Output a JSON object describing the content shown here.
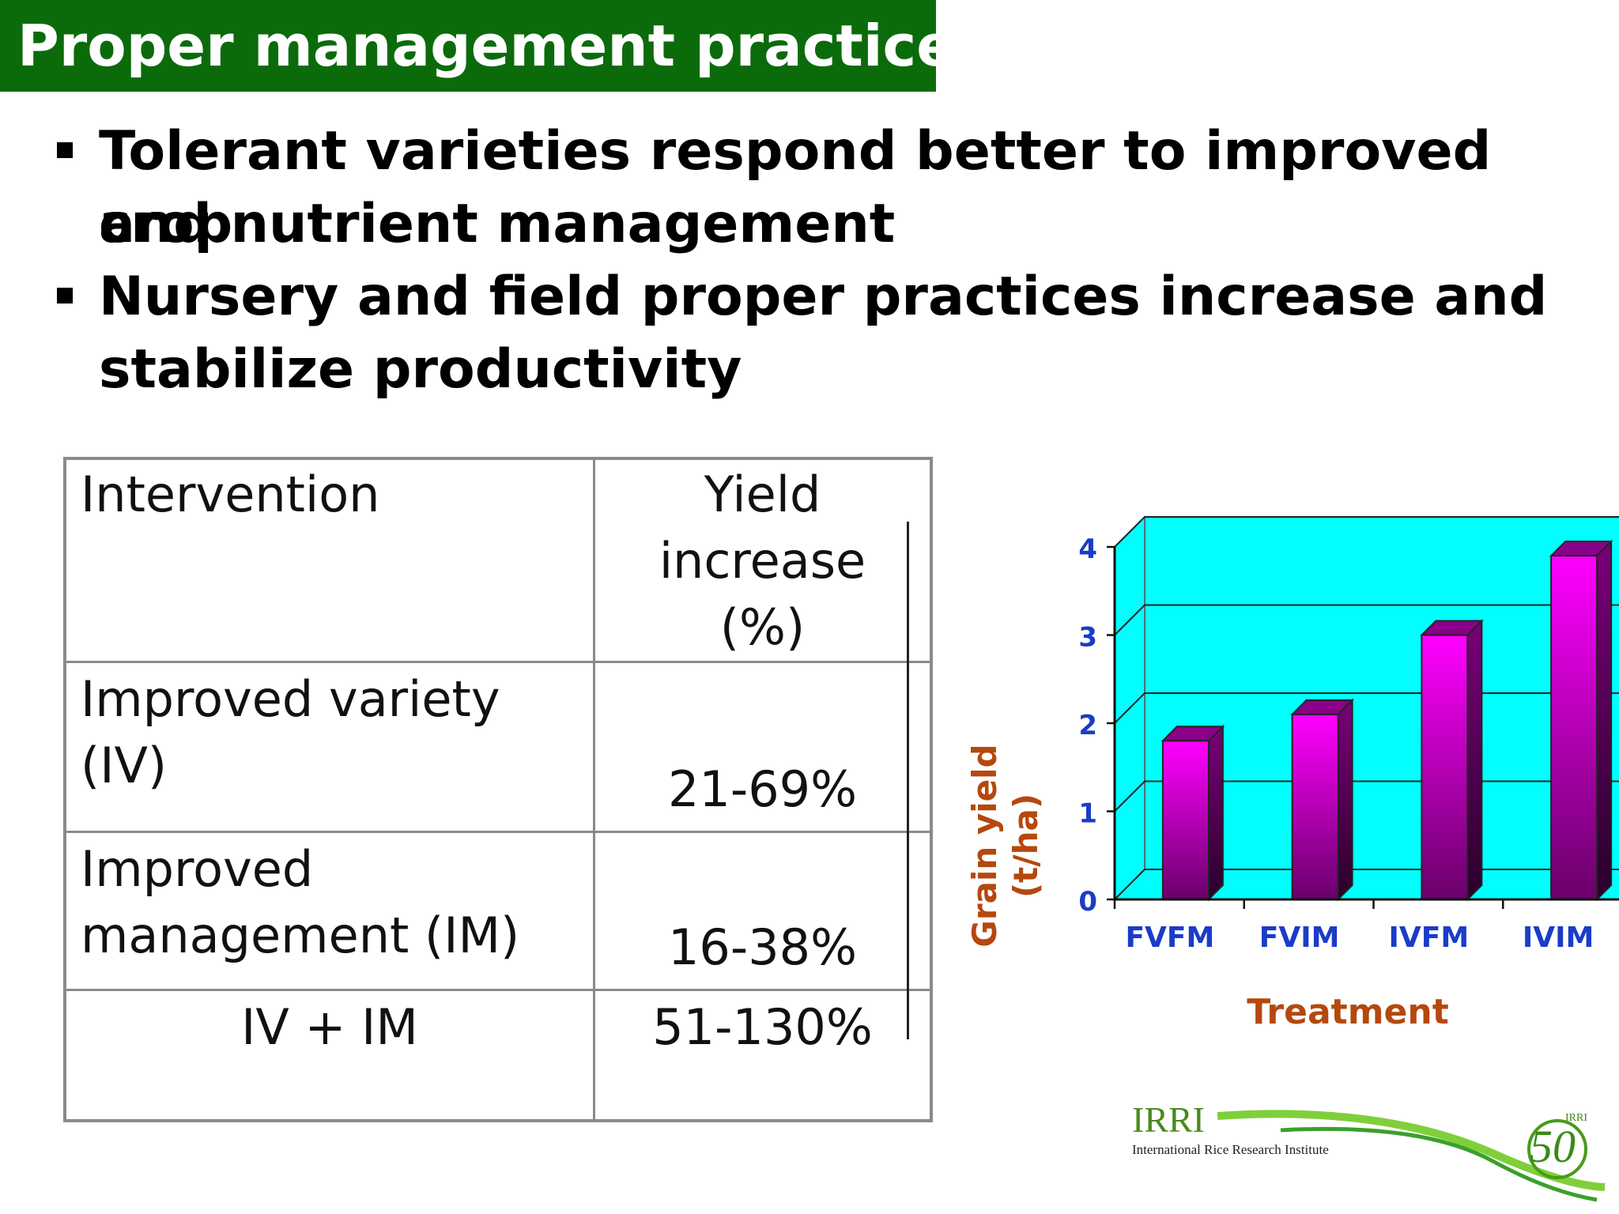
{
  "slide": {
    "title": "Proper management practices",
    "bullets": [
      {
        "line1": "Tolerant varieties respond better to improved crop",
        "line2": "and nutrient management"
      },
      {
        "line1": "Nursery and field proper practices increase and",
        "line2": "stabilize productivity"
      }
    ]
  },
  "table": {
    "header": {
      "col1": "Intervention",
      "col2_line1": "Yield",
      "col2_line2": "increase (%)"
    },
    "rows": [
      {
        "line1": "Improved variety",
        "line2": "(IV)",
        "value": "21-69%"
      },
      {
        "line1": "Improved",
        "line2": "management (IM)",
        "value": "16-38%"
      },
      {
        "line1": "IV + IM",
        "value": "51-130%"
      }
    ]
  },
  "chart_data": {
    "type": "bar",
    "categories": [
      "FVFM",
      "FVIM",
      "IVFM",
      "IVIM"
    ],
    "values": [
      1.8,
      2.1,
      3.0,
      3.9
    ],
    "xlabel": "Treatment",
    "ylabel_line1": "Grain yield",
    "ylabel_line2": "(t/ha)",
    "ylim": [
      0,
      4
    ],
    "yticks": [
      "0",
      "1",
      "2",
      "3",
      "4"
    ],
    "grid": true,
    "colors": {
      "plot_bg": "#00ffff",
      "bar_top": "#ff00ff",
      "bar_bottom": "#6a006a",
      "tick_labels": "#1a3cc8",
      "axis_title": "#b5480e"
    }
  },
  "logo": {
    "acronym": "IRRI",
    "full_name": "International Rice Research Institute",
    "anniversary": "50",
    "badge": "IRRI"
  }
}
